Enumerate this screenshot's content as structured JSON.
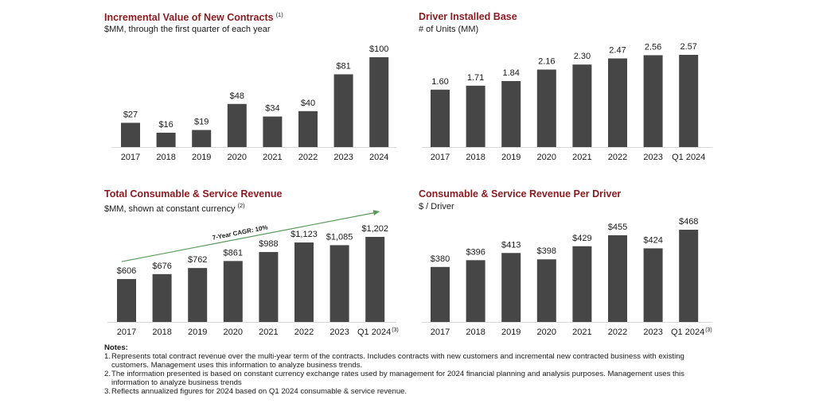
{
  "colors": {
    "bar": "#464646",
    "title": "#8b1a1f",
    "arrow": "#5a9a5a",
    "baseline": "#d9d9d9"
  },
  "chart_data": [
    {
      "id": "incremental-contracts",
      "type": "bar",
      "title": "Incremental Value of New Contracts",
      "title_note": "(1)",
      "subtitle": "$MM, through the first quarter of each year",
      "subtitle_note": "",
      "categories": [
        "2017",
        "2018",
        "2019",
        "2020",
        "2021",
        "2022",
        "2023",
        "2024"
      ],
      "category_notes": [
        "",
        "",
        "",
        "",
        "",
        "",
        "",
        ""
      ],
      "values": [
        27,
        16,
        19,
        48,
        34,
        40,
        81,
        100
      ],
      "labels": [
        "$27",
        "$16",
        "$19",
        "$48",
        "$34",
        "$40",
        "$81",
        "$100"
      ],
      "ylim": [
        0,
        100
      ],
      "grid": false
    },
    {
      "id": "driver-installed-base",
      "type": "bar",
      "title": "Driver Installed Base",
      "title_note": "",
      "subtitle": "# of Units (MM)",
      "subtitle_note": "",
      "categories": [
        "2017",
        "2018",
        "2019",
        "2020",
        "2021",
        "2022",
        "2023",
        "Q1 2024"
      ],
      "category_notes": [
        "",
        "",
        "",
        "",
        "",
        "",
        "",
        ""
      ],
      "values": [
        1.6,
        1.71,
        1.84,
        2.16,
        2.3,
        2.47,
        2.56,
        2.57
      ],
      "labels": [
        "1.60",
        "1.71",
        "1.84",
        "2.16",
        "2.30",
        "2.47",
        "2.56",
        "2.57"
      ],
      "ylim": [
        0,
        2.57
      ],
      "grid": false
    },
    {
      "id": "consumable-service-revenue",
      "type": "bar",
      "title": "Total Consumable & Service Revenue",
      "title_note": "",
      "subtitle": "$MM, shown at constant currency",
      "subtitle_note": "(2)",
      "categories": [
        "2017",
        "2018",
        "2019",
        "2020",
        "2021",
        "2022",
        "2023",
        "Q1 2024"
      ],
      "category_notes": [
        "",
        "",
        "",
        "",
        "",
        "",
        "",
        "(3)"
      ],
      "values": [
        606,
        676,
        762,
        861,
        988,
        1123,
        1085,
        1202
      ],
      "labels": [
        "$606",
        "$676",
        "$762",
        "$861",
        "$988",
        "$1,123",
        "$1,085",
        "$1,202"
      ],
      "ylim": [
        0,
        1202
      ],
      "grid": false,
      "annotation": {
        "text": "7-Year CAGR: 10%",
        "type": "trend-arrow",
        "from": "2017",
        "to": "Q1 2024"
      }
    },
    {
      "id": "revenue-per-driver",
      "type": "bar",
      "title": "Consumable & Service Revenue Per Driver",
      "title_note": "",
      "subtitle": "$ / Driver",
      "subtitle_note": "",
      "categories": [
        "2017",
        "2018",
        "2019",
        "2020",
        "2021",
        "2022",
        "2023",
        "Q1 2024"
      ],
      "category_notes": [
        "",
        "",
        "",
        "",
        "",
        "",
        "",
        "(3)"
      ],
      "values": [
        380,
        396,
        413,
        398,
        429,
        455,
        424,
        468
      ],
      "labels": [
        "$380",
        "$396",
        "$413",
        "$398",
        "$429",
        "$455",
        "$424",
        "$468"
      ],
      "ylim": [
        250,
        468
      ],
      "grid": false
    }
  ],
  "notes": {
    "heading": "Notes:",
    "items": [
      {
        "num": "1.",
        "text": "Represents total contract revenue over the multi-year term of the contracts.  Includes contracts with new customers and incremental new contracted business with existing customers. Management uses this information to analyze business trends."
      },
      {
        "num": "2.",
        "text": "The information presented is based on constant currency exchange rates used by management for 2024 financial planning and analysis purposes.  Management uses this information to analyze business trends"
      },
      {
        "num": "3.",
        "text": "Reflects annualized figures for 2024 based on Q1 2024 consumable & service revenue."
      }
    ]
  }
}
